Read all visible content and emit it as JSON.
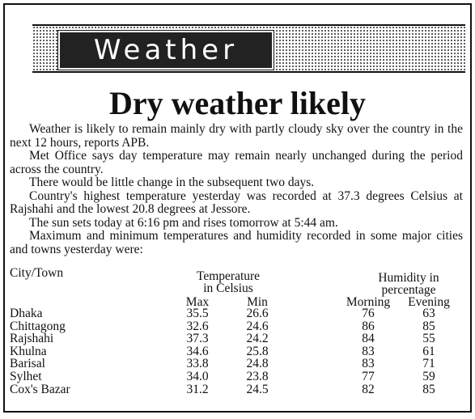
{
  "header": {
    "label": "Weather"
  },
  "headline": "Dry weather likely",
  "paragraphs": [
    "Weather is likely to remain mainly dry with partly cloudy sky over the country in the next 12 hours, reports APB.",
    "Met Office says day temperature may remain nearly unchanged during the period across the country.",
    "There would be little change in the subsequent two days.",
    "Country's highest temperature yesterday was recorded at 37.3 degrees Celsius at Rajshahi and the lowest 20.8 degrees at Jessore.",
    "The sun sets today at 6:16 pm and rises tomorrow at 5:44 am.",
    "Maximum and minimum temperatures and humidity recorded in some major cities and towns yesterday were:"
  ],
  "table": {
    "city_header": "City/Town",
    "temperature_header": [
      "Temperature",
      "in Celsius"
    ],
    "humidity_header": [
      "Humidity in",
      "percentage"
    ],
    "subheaders": [
      "Max",
      "Min",
      "Morning",
      "Evening"
    ],
    "rows": [
      [
        "Dhaka",
        "35.5",
        "26.6",
        "76",
        "63"
      ],
      [
        "Chittagong",
        "32.6",
        "24.6",
        "86",
        "85"
      ],
      [
        "Rajshahi",
        "37.3",
        "24.2",
        "84",
        "55"
      ],
      [
        "Khulna",
        "34.6",
        "25.8",
        "83",
        "61"
      ],
      [
        "Barisal",
        "33.8",
        "24.8",
        "83",
        "71"
      ],
      [
        "Sylhet",
        "34.0",
        "23.8",
        "77",
        "59"
      ],
      [
        "Cox's Bazar",
        "31.2",
        "24.5",
        "82",
        "85"
      ]
    ]
  }
}
